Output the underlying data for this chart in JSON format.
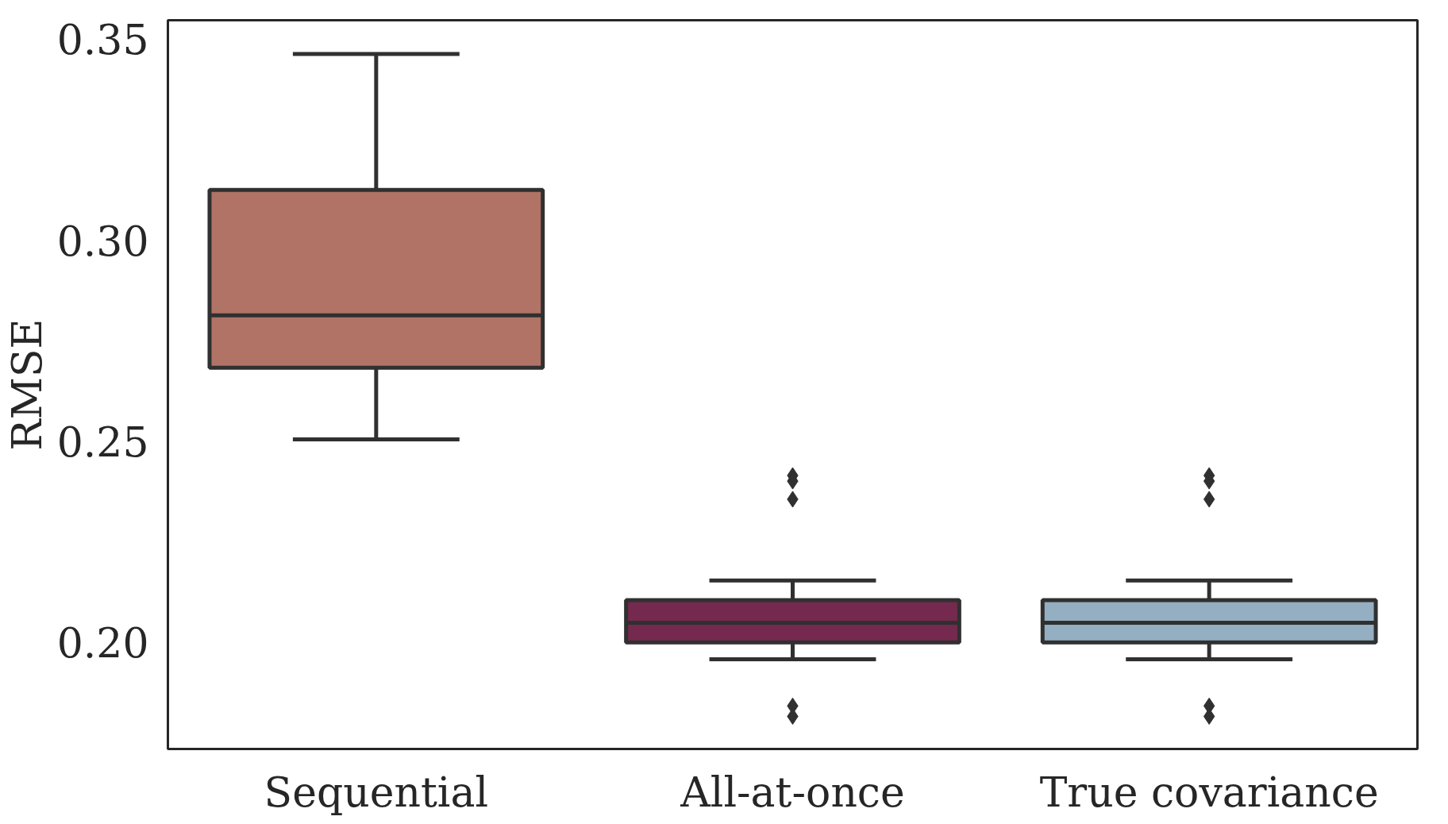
{
  "chart_data": {
    "type": "box",
    "ylabel": "RMSE",
    "categories": [
      "Sequential",
      "All-at-once",
      "True covariance"
    ],
    "colors": [
      "#b07366",
      "#76294f",
      "#94afc1"
    ],
    "boxes": [
      {
        "low": 0.2505,
        "q1": 0.2683,
        "median": 0.2813,
        "q3": 0.3125,
        "high": 0.3463
      },
      {
        "low": 0.1958,
        "q1": 0.2,
        "median": 0.2049,
        "q3": 0.2105,
        "high": 0.2154,
        "outliers": [
          0.2415,
          0.2401,
          0.2356,
          0.1842,
          0.1816
        ]
      },
      {
        "low": 0.1958,
        "q1": 0.2,
        "median": 0.2049,
        "q3": 0.2105,
        "high": 0.2154,
        "outliers": [
          0.2415,
          0.2401,
          0.2356,
          0.1842,
          0.1816
        ]
      }
    ],
    "ylim": [
      0.1735,
      0.3547
    ],
    "yticks": [
      {
        "value": 0.2,
        "label": "0.20"
      },
      {
        "value": 0.25,
        "label": "0.25"
      },
      {
        "value": 0.3,
        "label": "0.30"
      },
      {
        "value": 0.35,
        "label": "0.35"
      }
    ],
    "grid": false,
    "marker": "diamond"
  }
}
